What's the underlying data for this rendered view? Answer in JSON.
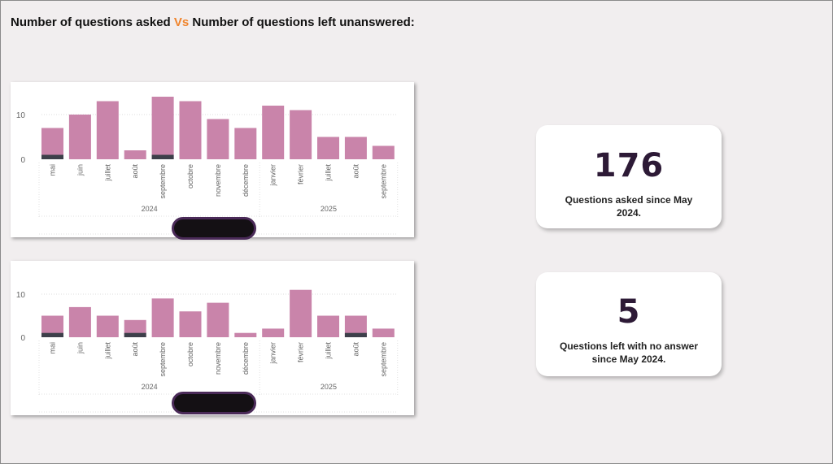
{
  "header": {
    "title_part1": "Number of questions asked",
    "title_vs": "Vs",
    "title_part2": "Number of questions left unanswered:"
  },
  "colors": {
    "bar": "#c984aa",
    "overlay": "#3d3f4a",
    "accent": "#f0842c",
    "kpi_text": "#2d1a36"
  },
  "kpis": [
    {
      "value": "176",
      "label": "Questions asked since May 2024."
    },
    {
      "value": "5",
      "label": "Questions left with no answer since May 2024."
    }
  ],
  "chart_data": [
    {
      "type": "bar",
      "categories": [
        "mai",
        "juin",
        "juillet",
        "août",
        "septembre",
        "octobre",
        "novembre",
        "décembre",
        "janvier",
        "février",
        "juillet",
        "août",
        "septembre"
      ],
      "year_groups": [
        {
          "label": "2024",
          "start": 0,
          "end": 7
        },
        {
          "label": "2025",
          "start": 8,
          "end": 12
        }
      ],
      "series": [
        {
          "values": [
            7,
            10,
            13,
            2,
            14,
            13,
            9,
            7,
            12,
            11,
            5,
            5,
            3
          ]
        },
        {
          "values": [
            1,
            0,
            0,
            0,
            1,
            0,
            0,
            0,
            0,
            0,
            0,
            0,
            0
          ]
        }
      ],
      "yticks": [
        0,
        10
      ],
      "ylim": [
        0,
        15
      ],
      "grid": true
    },
    {
      "type": "bar",
      "categories": [
        "mai",
        "juin",
        "juillet",
        "août",
        "septembre",
        "octobre",
        "novembre",
        "décembre",
        "janvier",
        "février",
        "juillet",
        "août",
        "septembre"
      ],
      "year_groups": [
        {
          "label": "2024",
          "start": 0,
          "end": 7
        },
        {
          "label": "2025",
          "start": 8,
          "end": 12
        }
      ],
      "series": [
        {
          "values": [
            5,
            7,
            5,
            4,
            9,
            6,
            8,
            1,
            2,
            11,
            5,
            5,
            2
          ]
        },
        {
          "values": [
            1,
            0,
            0,
            1,
            0,
            0,
            0,
            0,
            0,
            0,
            0,
            1,
            0
          ]
        }
      ],
      "yticks": [
        0,
        10
      ],
      "ylim": [
        0,
        15
      ],
      "grid": true
    }
  ]
}
